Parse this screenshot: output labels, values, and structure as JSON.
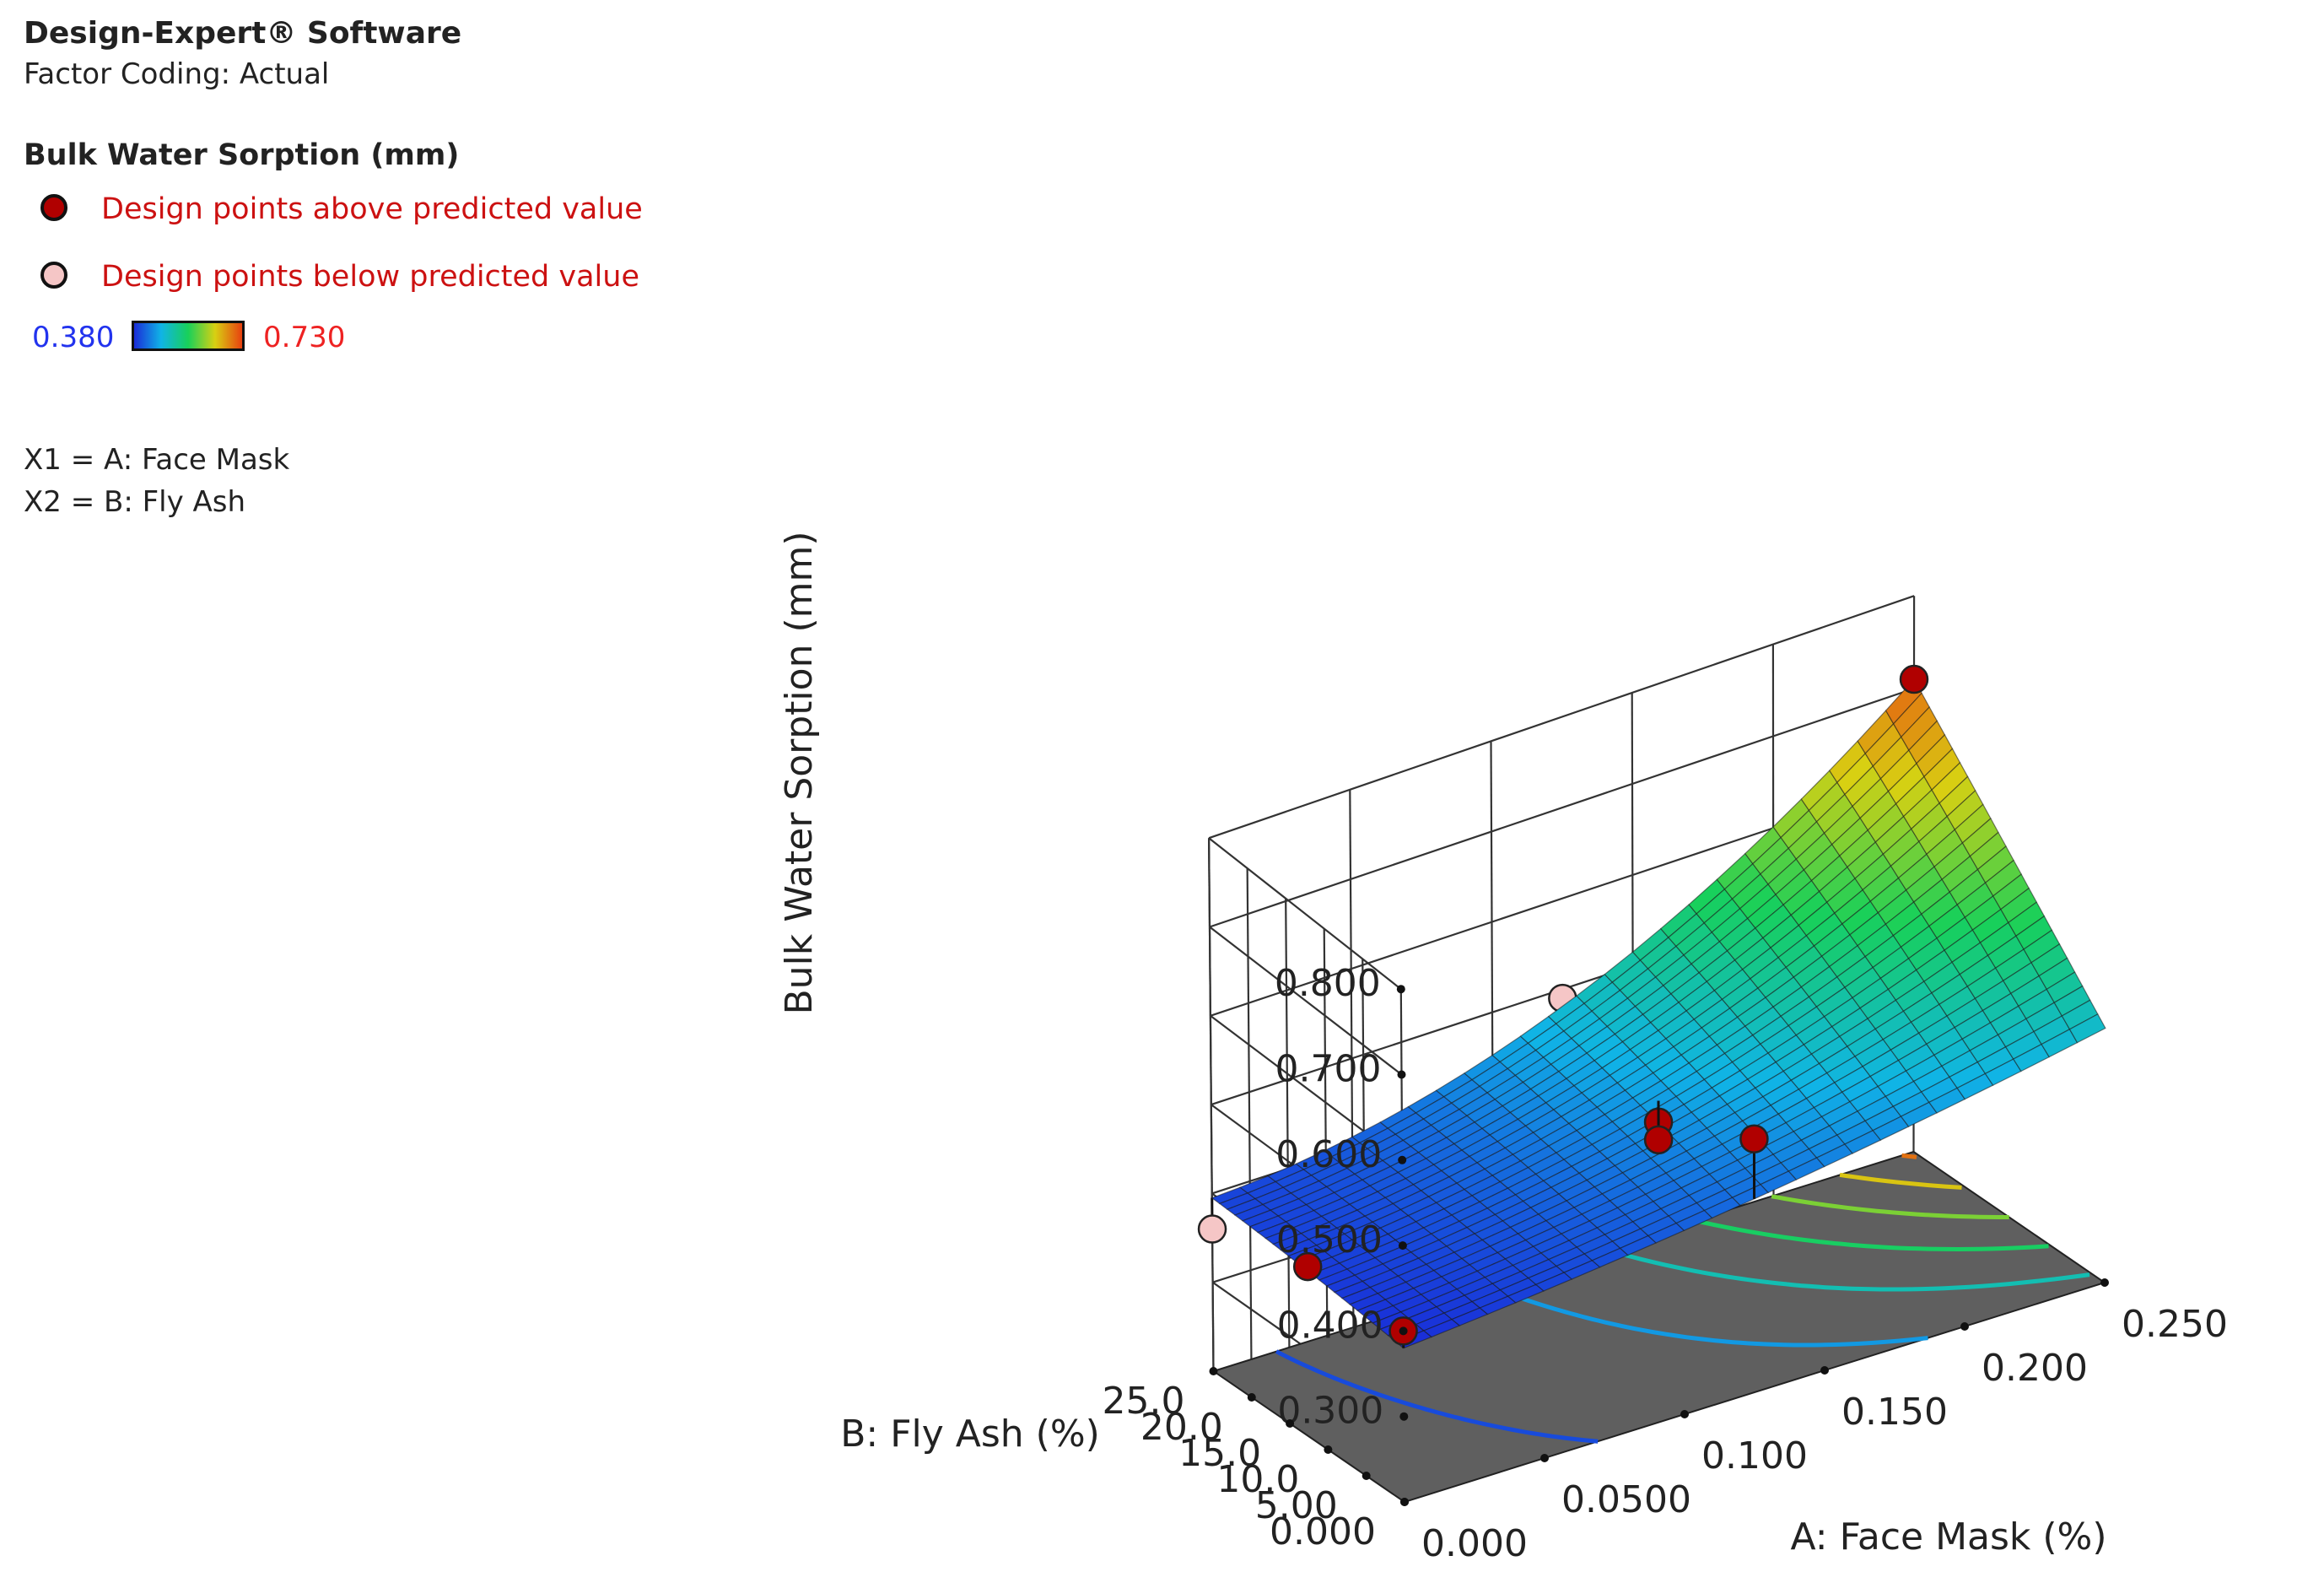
{
  "header": {
    "software": "Design-Expert® Software",
    "factor_coding": "Factor Coding: Actual"
  },
  "legend": {
    "response_title": "Bulk Water Sorption (mm)",
    "above_label": "Design points above predicted value",
    "below_label": "Design points below predicted value",
    "above_color": "#b00000",
    "below_color": "#f5c6c6",
    "scale_min": "0.380",
    "scale_max": "0.730",
    "var_x1": "X1 = A: Face Mask",
    "var_x2": "X2 = B: Fly Ash"
  },
  "chart_data": {
    "type": "surface3d",
    "title": "",
    "zlabel": "Bulk Water Sorption (mm)",
    "xlabel": "A: Face Mask (%)",
    "ylabel": "B: Fly Ash (%)",
    "x_ticks": [
      "0.000",
      "0.0500",
      "0.100",
      "0.150",
      "0.200",
      "0.250"
    ],
    "y_ticks": [
      "0.000",
      "5.00",
      "10.0",
      "15.0",
      "20.0",
      "25.0"
    ],
    "z_ticks": [
      "0.300",
      "0.400",
      "0.500",
      "0.600",
      "0.700",
      "0.800"
    ],
    "xlim": [
      0,
      0.25
    ],
    "ylim": [
      0,
      25
    ],
    "zlim": [
      0.2,
      0.8
    ],
    "colormap": [
      "#1a2cd8",
      "#10b4e6",
      "#18d05a",
      "#d8d012",
      "#e84010"
    ],
    "color_range": [
      0.38,
      0.73
    ],
    "surface_model": "z = 0.38 + 0.06*x + 0.025*y + 0.045*x^2 - 0.01*y^2 - 0.03*x*y + 0.24*x^2*y (x = A/0.25, y = B/25)",
    "contour_levels": [
      0.4,
      0.45,
      0.5,
      0.55,
      0.6,
      0.65,
      0.7
    ],
    "design_points": [
      {
        "a": 0.0,
        "b": 0.0,
        "z": 0.4,
        "type": "above"
      },
      {
        "a": 0.0,
        "b": 12.5,
        "z": 0.395,
        "type": "above"
      },
      {
        "a": 0.0,
        "b": 25.0,
        "z": 0.36,
        "type": "below"
      },
      {
        "a": 0.125,
        "b": 0.0,
        "z": 0.49,
        "type": "above"
      },
      {
        "a": 0.125,
        "b": 12.5,
        "z": 0.43,
        "type": "above"
      },
      {
        "a": 0.125,
        "b": 12.5,
        "z": 0.41,
        "type": "above"
      },
      {
        "a": 0.125,
        "b": 25.0,
        "z": 0.49,
        "type": "below"
      },
      {
        "a": 0.25,
        "b": 25.0,
        "z": 0.71,
        "type": "above"
      }
    ]
  }
}
